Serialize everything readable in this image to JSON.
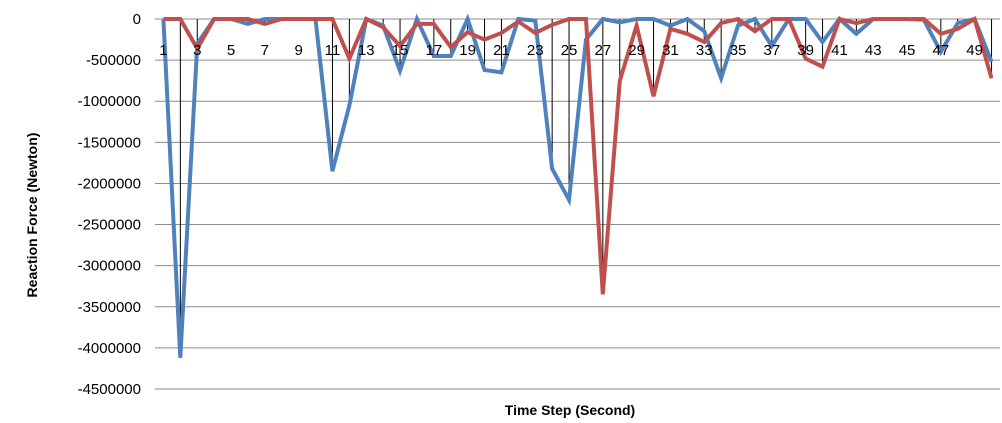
{
  "chart_data": {
    "type": "line",
    "title": "",
    "xlabel": "Time Step (Second)",
    "ylabel": "Reaction  Force (Newton)",
    "x": [
      1,
      2,
      3,
      4,
      5,
      6,
      7,
      8,
      9,
      10,
      11,
      12,
      13,
      14,
      15,
      16,
      17,
      18,
      19,
      20,
      21,
      22,
      23,
      24,
      25,
      26,
      27,
      28,
      29,
      30,
      31,
      32,
      33,
      34,
      35,
      36,
      37,
      38,
      39,
      40,
      41,
      42,
      43,
      44,
      45,
      46,
      47,
      48,
      49,
      50
    ],
    "x_tick_labels": [
      "1",
      "3",
      "5",
      "7",
      "9",
      "11",
      "13",
      "15",
      "17",
      "19",
      "21",
      "23",
      "25",
      "27",
      "29",
      "31",
      "33",
      "35",
      "37",
      "39",
      "41",
      "43",
      "45",
      "47",
      "49"
    ],
    "y_tick_labels": [
      "0",
      "-500000",
      "-1000000",
      "-1500000",
      "-2000000",
      "-2500000",
      "-3000000",
      "-3500000",
      "-4000000",
      "-4500000"
    ],
    "ylim": [
      -4500000,
      0
    ],
    "y_major_step": 500000,
    "grid": true,
    "legend": "none",
    "series": [
      {
        "color": "#4F81BD",
        "values": [
          0,
          -4120000,
          -300000,
          0,
          0,
          -60000,
          0,
          0,
          0,
          0,
          -1850000,
          -1050000,
          0,
          -80000,
          -630000,
          0,
          -450000,
          -450000,
          0,
          -620000,
          -650000,
          0,
          -20000,
          -1820000,
          -2200000,
          -250000,
          0,
          -40000,
          0,
          0,
          -80000,
          0,
          -150000,
          -720000,
          -80000,
          0,
          -330000,
          0,
          0,
          -280000,
          0,
          -180000,
          0,
          0,
          0,
          -10000,
          -400000,
          -50000,
          0,
          -520000
        ]
      },
      {
        "color": "#C0504D",
        "values": [
          0,
          0,
          -360000,
          0,
          0,
          0,
          -60000,
          0,
          0,
          0,
          0,
          -480000,
          0,
          -100000,
          -330000,
          -60000,
          -60000,
          -340000,
          -160000,
          -250000,
          -170000,
          -30000,
          -170000,
          -70000,
          0,
          0,
          -3350000,
          -750000,
          -80000,
          -940000,
          -120000,
          -180000,
          -280000,
          -50000,
          0,
          -150000,
          0,
          0,
          -480000,
          -580000,
          0,
          -50000,
          0,
          0,
          0,
          0,
          -180000,
          -120000,
          0,
          -720000
        ]
      }
    ],
    "drop_lines_color": "#000000"
  }
}
